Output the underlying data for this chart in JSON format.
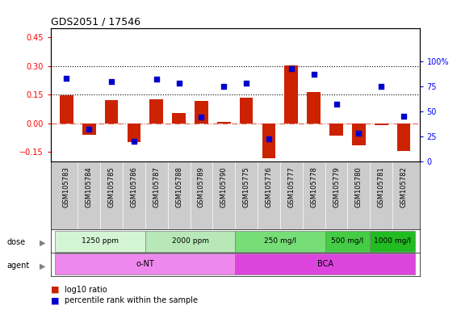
{
  "title": "GDS2051 / 17546",
  "samples": [
    "GSM105783",
    "GSM105784",
    "GSM105785",
    "GSM105786",
    "GSM105787",
    "GSM105788",
    "GSM105789",
    "GSM105790",
    "GSM105775",
    "GSM105776",
    "GSM105777",
    "GSM105778",
    "GSM105779",
    "GSM105780",
    "GSM105781",
    "GSM105782"
  ],
  "log10_ratio": [
    0.145,
    -0.06,
    0.12,
    -0.1,
    0.125,
    0.055,
    0.115,
    0.005,
    0.135,
    -0.185,
    0.305,
    0.165,
    -0.065,
    -0.115,
    -0.01,
    -0.145
  ],
  "percentile_rank": [
    83,
    32,
    80,
    20,
    82,
    78,
    44,
    75,
    78,
    22,
    93,
    87,
    57,
    28,
    75,
    45
  ],
  "dose_groups": [
    {
      "label": "1250 ppm",
      "start": 0,
      "end": 4,
      "color": "#d4f5d4"
    },
    {
      "label": "2000 ppm",
      "start": 4,
      "end": 8,
      "color": "#b8e8b8"
    },
    {
      "label": "250 mg/l",
      "start": 8,
      "end": 12,
      "color": "#77dd77"
    },
    {
      "label": "500 mg/l",
      "start": 12,
      "end": 14,
      "color": "#44cc44"
    },
    {
      "label": "1000 mg/l",
      "start": 14,
      "end": 16,
      "color": "#22bb22"
    }
  ],
  "agent_groups": [
    {
      "label": "o-NT",
      "start": 0,
      "end": 8,
      "color": "#ee88ee"
    },
    {
      "label": "BCA",
      "start": 8,
      "end": 16,
      "color": "#dd44dd"
    }
  ],
  "bar_color": "#cc2200",
  "dot_color": "#0000cc",
  "ylim_left": [
    -0.2,
    0.5
  ],
  "ylim_right": [
    0,
    133.33
  ],
  "yticks_left": [
    -0.15,
    0.0,
    0.15,
    0.3,
    0.45
  ],
  "yticks_right": [
    0,
    25,
    50,
    75,
    100
  ],
  "hline_y": 0.0,
  "dotted_lines": [
    0.15,
    0.3
  ],
  "background_color": "#ffffff",
  "label_area_color": "#dddddd",
  "sample_row_color": "#cccccc"
}
